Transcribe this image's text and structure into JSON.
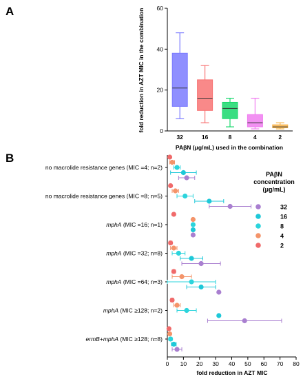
{
  "chart_data": [
    {
      "panel": "A",
      "type": "box",
      "xlabel": "PAβN (μg/mL) used in the combination",
      "ylabel": "fold reduction in AZT MIC in the combination",
      "ylim": [
        0,
        60
      ],
      "yticks": [
        0,
        20,
        40,
        60
      ],
      "categories": [
        "32",
        "16",
        "8",
        "4",
        "2"
      ],
      "boxes": [
        {
          "category": "32",
          "min": 6,
          "q1": 12,
          "median": 21,
          "q3": 38,
          "max": 48,
          "color": "#7b7bff"
        },
        {
          "category": "16",
          "min": 4,
          "q1": 10,
          "median": 16,
          "q3": 25,
          "max": 32,
          "color": "#f87474"
        },
        {
          "category": "8",
          "min": 2,
          "q1": 6,
          "median": 11,
          "q3": 14,
          "max": 16,
          "color": "#18d86c"
        },
        {
          "category": "4",
          "min": 1,
          "q1": 2,
          "median": 4,
          "q3": 8,
          "max": 16,
          "color": "#f07cf0"
        },
        {
          "category": "2",
          "min": 1,
          "q1": 1.5,
          "median": 2,
          "q3": 3,
          "max": 4,
          "color": "#f8b44a"
        }
      ]
    },
    {
      "panel": "B",
      "type": "scatter",
      "xlabel": "fold reduction in AZT MIC",
      "xlim": [
        0,
        80
      ],
      "xticks": [
        0,
        10,
        20,
        30,
        40,
        50,
        60,
        70,
        80
      ],
      "legend_title": "PAβN concentration (μg/mL)",
      "legend_title_lines": [
        "PAβN",
        "concentration",
        "(μg/mL)"
      ],
      "legend_position": "right",
      "series": [
        {
          "name": "32",
          "color": "#a97fd0"
        },
        {
          "name": "16",
          "color": "#1ec8d8"
        },
        {
          "name": "8",
          "color": "#2cd4dc"
        },
        {
          "name": "4",
          "color": "#f4946a"
        },
        {
          "name": "2",
          "color": "#f06a6a"
        }
      ],
      "groups": [
        {
          "label_parts": [
            {
              "text": "no macrolide resistance genes (MIC =4; n=2)",
              "italic": false
            }
          ],
          "points": [
            {
              "series": "2",
              "mean": 1.5,
              "err": 0
            },
            {
              "series": "4",
              "mean": 3,
              "err": 1.5
            },
            {
              "series": "8",
              "mean": 6,
              "err": 2
            },
            {
              "series": "16",
              "mean": 10,
              "err": 8
            },
            {
              "series": "32",
              "mean": 12,
              "err": 5
            }
          ]
        },
        {
          "label_parts": [
            {
              "text": "no macrolide resistance genes (MIC =8; n=5)",
              "italic": false
            }
          ],
          "points": [
            {
              "series": "2",
              "mean": 2,
              "err": 0
            },
            {
              "series": "4",
              "mean": 5,
              "err": 2
            },
            {
              "series": "8",
              "mean": 11,
              "err": 5
            },
            {
              "series": "16",
              "mean": 26,
              "err": 9
            },
            {
              "series": "32",
              "mean": 39,
              "err": 13
            }
          ]
        },
        {
          "label_parts": [
            {
              "text": "mphA",
              "italic": true
            },
            {
              "text": " (MIC =16; n=1)",
              "italic": false
            }
          ],
          "points": [
            {
              "series": "2",
              "mean": 4,
              "err": 0
            },
            {
              "series": "4",
              "mean": 16,
              "err": 0
            },
            {
              "series": "8",
              "mean": 16,
              "err": 0
            },
            {
              "series": "16",
              "mean": 16,
              "err": 0
            },
            {
              "series": "32",
              "mean": 16,
              "err": 0
            }
          ]
        },
        {
          "label_parts": [
            {
              "text": "mphA",
              "italic": true
            },
            {
              "text": " (MIC =32; n=8)",
              "italic": false
            }
          ],
          "points": [
            {
              "series": "2",
              "mean": 2,
              "err": 1
            },
            {
              "series": "4",
              "mean": 4,
              "err": 2
            },
            {
              "series": "8",
              "mean": 7,
              "err": 4
            },
            {
              "series": "16",
              "mean": 15,
              "err": 7
            },
            {
              "series": "32",
              "mean": 21,
              "err": 12
            }
          ]
        },
        {
          "label_parts": [
            {
              "text": "mphA",
              "italic": true
            },
            {
              "text": " (MIC =64; n=3)",
              "italic": false
            }
          ],
          "points": [
            {
              "series": "2",
              "mean": 4,
              "err": 1
            },
            {
              "series": "4",
              "mean": 9,
              "err": 6
            },
            {
              "series": "8",
              "mean": 15,
              "err": 15
            },
            {
              "series": "16",
              "mean": 21,
              "err": 9
            },
            {
              "series": "32",
              "mean": 32,
              "err": 0
            }
          ]
        },
        {
          "label_parts": [
            {
              "text": "mphA",
              "italic": true
            },
            {
              "text": " (MIC ≥128; n=2)",
              "italic": false
            }
          ],
          "points": [
            {
              "series": "2",
              "mean": 3,
              "err": 1
            },
            {
              "series": "4",
              "mean": 6,
              "err": 2
            },
            {
              "series": "8",
              "mean": 12,
              "err": 6
            },
            {
              "series": "16",
              "mean": 32,
              "err": 0
            },
            {
              "series": "32",
              "mean": 48,
              "err": 23
            }
          ]
        },
        {
          "label_parts": [
            {
              "text": "ermB+mphA",
              "italic": true
            },
            {
              "text": " (MIC ≥128; n=8)",
              "italic": false
            }
          ],
          "points": [
            {
              "series": "2",
              "mean": 1,
              "err": 0
            },
            {
              "series": "4",
              "mean": 1.5,
              "err": 0.5
            },
            {
              "series": "8",
              "mean": 2,
              "err": 1
            },
            {
              "series": "16",
              "mean": 4,
              "err": 1.5
            },
            {
              "series": "32",
              "mean": 6,
              "err": 3
            }
          ]
        }
      ]
    }
  ]
}
